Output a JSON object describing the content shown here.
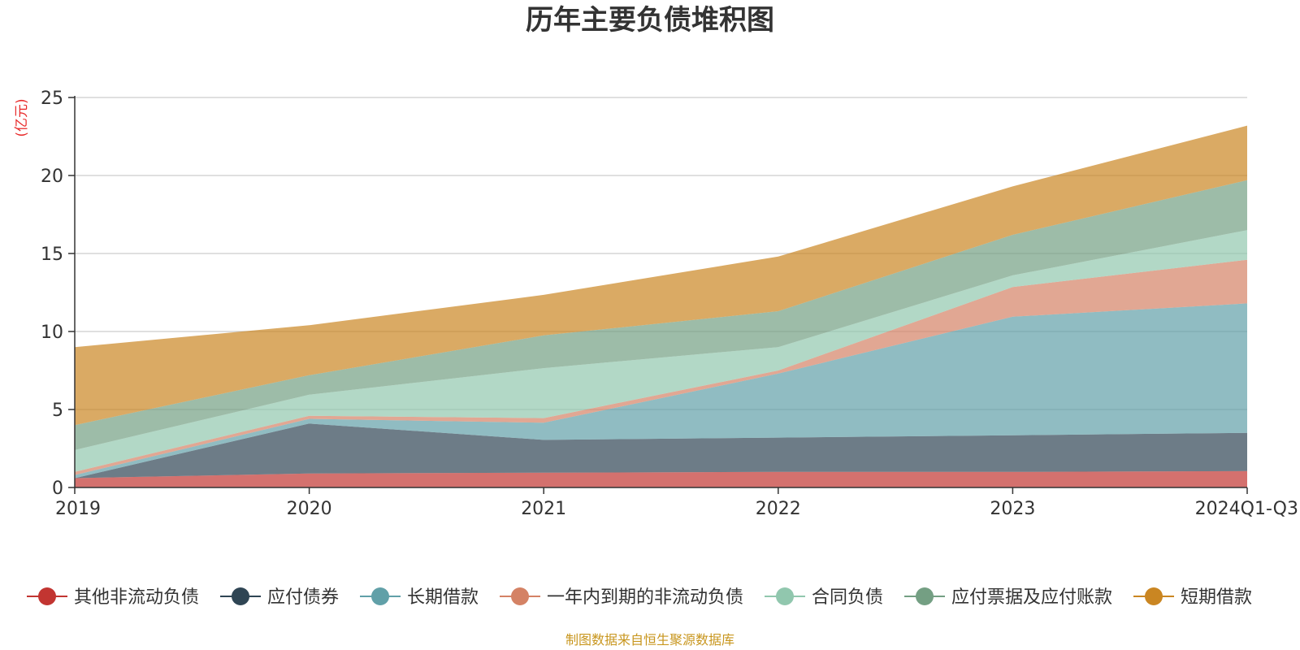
{
  "chart_data": {
    "type": "area",
    "stacked": true,
    "title": "历年主要负债堆积图",
    "unit_label": "(亿元)",
    "categories": [
      "2019",
      "2020",
      "2021",
      "2022",
      "2023",
      "2024Q1-Q3"
    ],
    "ylim": [
      0,
      25
    ],
    "yticks": [
      0,
      5,
      10,
      15,
      20,
      25
    ],
    "grid": true,
    "legend_position": "bottom",
    "series": [
      {
        "name": "其他非流动负债",
        "color": "#c23531",
        "values": [
          0.6,
          0.9,
          0.95,
          1.0,
          1.0,
          1.05
        ]
      },
      {
        "name": "应付债券",
        "color": "#2f4554",
        "values": [
          0.0,
          3.2,
          2.1,
          2.2,
          2.35,
          2.45
        ]
      },
      {
        "name": "长期借款",
        "color": "#61a0a8",
        "values": [
          0.2,
          0.3,
          1.1,
          4.1,
          7.6,
          8.3
        ]
      },
      {
        "name": "一年内到期的非流动负债",
        "color": "#d48265",
        "values": [
          0.2,
          0.2,
          0.3,
          0.2,
          1.9,
          2.8
        ]
      },
      {
        "name": "合同负债",
        "color": "#91c7ae",
        "values": [
          1.4,
          1.35,
          3.2,
          1.5,
          0.75,
          1.9
        ]
      },
      {
        "name": "应付票据及应付账款",
        "color": "#749f83",
        "values": [
          1.6,
          1.25,
          2.1,
          2.3,
          2.6,
          3.2
        ]
      },
      {
        "name": "短期借款",
        "color": "#ca8622",
        "values": [
          5.0,
          3.2,
          2.6,
          3.5,
          3.1,
          3.5
        ]
      }
    ]
  },
  "source_note": "制图数据来自恒生聚源数据库",
  "colors": {
    "unit_label": "#e82b2b",
    "source_note": "#c8961e",
    "grid": "#cccccc",
    "axis": "#333333"
  }
}
